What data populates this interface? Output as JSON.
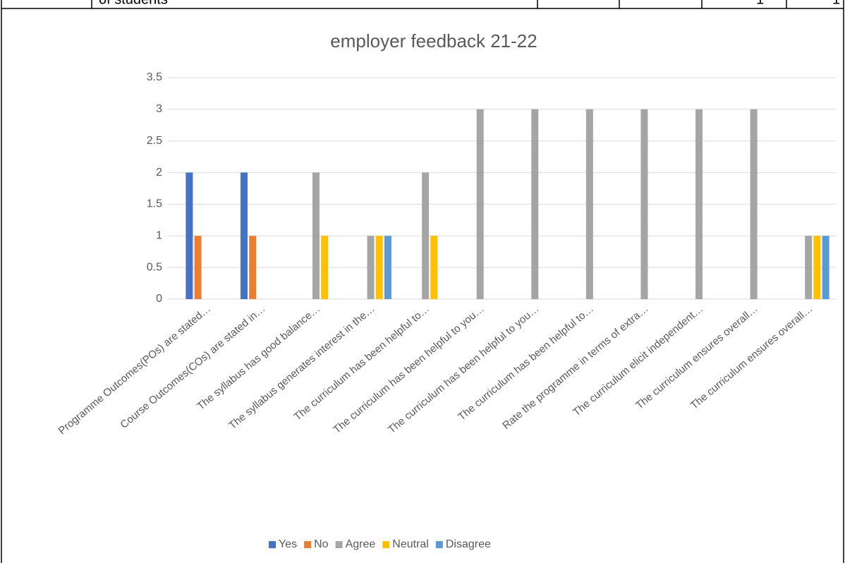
{
  "table_row": [
    "of students",
    "1",
    "1"
  ],
  "chart_data": {
    "type": "bar",
    "title": "employer feedback 21-22",
    "categories": [
      "Programme Outcomes(POs) are stated…",
      "Course Outcomes(COs) are stated in…",
      "The syllabus has good balance…",
      "The syllabus generates interest in the…",
      "The curriculum has been helpful to…",
      "The curriculum has been helpful to you…",
      "The curriculum has been helpful to you…",
      "The curriculum has been helpful to…",
      "Rate the programme in terms of extra…",
      "The curriculum elicit independent…",
      "The curriculum ensures overall…",
      "The curriculum ensures overall…"
    ],
    "series": [
      {
        "name": "Yes",
        "color": "#4472c4",
        "values": [
          2,
          2,
          null,
          null,
          null,
          null,
          null,
          null,
          null,
          null,
          null,
          null
        ]
      },
      {
        "name": "No",
        "color": "#ed7d31",
        "values": [
          1,
          1,
          null,
          null,
          null,
          null,
          null,
          null,
          null,
          null,
          null,
          null
        ]
      },
      {
        "name": "Agree",
        "color": "#a5a5a5",
        "values": [
          null,
          null,
          2,
          1,
          2,
          3,
          3,
          3,
          3,
          3,
          3,
          1
        ]
      },
      {
        "name": "Neutral",
        "color": "#ffc000",
        "values": [
          null,
          null,
          1,
          1,
          1,
          null,
          null,
          null,
          null,
          null,
          null,
          1
        ]
      },
      {
        "name": "Disagree",
        "color": "#5b9bd5",
        "values": [
          null,
          null,
          null,
          1,
          null,
          null,
          null,
          null,
          null,
          null,
          null,
          1
        ]
      }
    ],
    "ylim": [
      0,
      3.5
    ],
    "yticks": [
      0,
      0.5,
      1,
      1.5,
      2,
      2.5,
      3,
      3.5
    ],
    "grid": true,
    "legend": "bottom"
  }
}
